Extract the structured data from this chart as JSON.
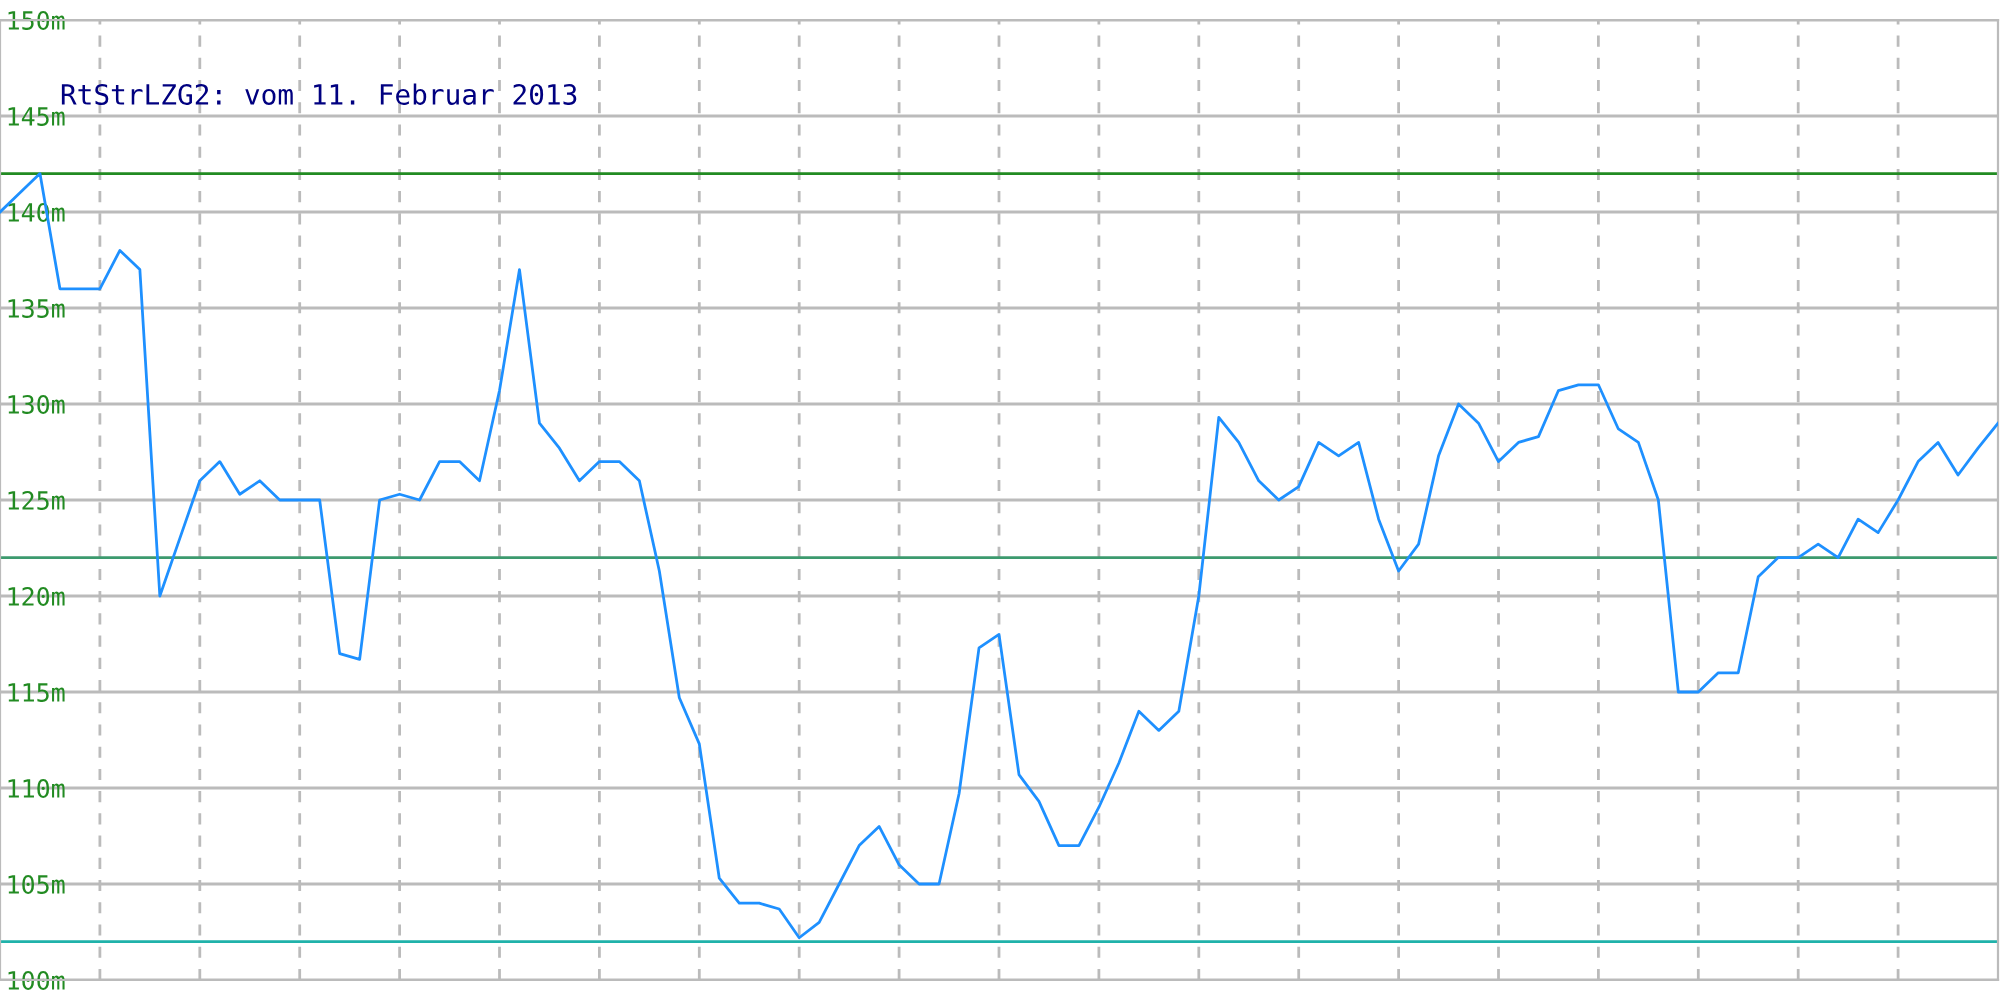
{
  "chart_data": {
    "type": "line",
    "title": "RtStrLZG2: vom 11. Februar 2013",
    "categories": [
      null,
      null,
      null,
      null,
      null,
      null,
      null,
      null,
      null,
      null,
      null,
      null,
      null,
      null,
      null,
      null,
      null,
      null,
      null,
      null,
      null,
      null,
      null,
      null,
      null,
      null,
      null,
      null,
      null,
      null,
      null,
      null,
      null,
      null,
      null,
      null,
      null,
      null,
      null,
      null,
      null,
      null,
      null,
      null,
      null,
      null,
      null,
      null,
      null,
      null,
      null,
      null,
      null,
      null,
      null,
      null,
      null,
      null,
      null,
      null,
      null,
      null,
      null,
      null,
      null,
      null,
      null,
      null,
      null,
      null,
      null,
      null,
      null,
      null,
      null,
      null,
      null,
      null,
      null,
      null,
      null,
      null,
      null,
      null,
      null,
      null,
      null,
      null,
      null,
      null,
      null,
      null,
      null,
      null,
      null,
      null,
      null,
      null,
      null,
      null,
      null
    ],
    "series": [
      {
        "color": "#1e90ff",
        "values": [
          140,
          141,
          142,
          136,
          136,
          136,
          138,
          137,
          120,
          123,
          126,
          127,
          125.3,
          126,
          125,
          125,
          125,
          117,
          116.7,
          125,
          125.3,
          125,
          127,
          127,
          126,
          130.7,
          137,
          129,
          127.7,
          126,
          127,
          127,
          126,
          121.3,
          114.7,
          112.3,
          105.3,
          104,
          104,
          103.7,
          102.2,
          103,
          105,
          107,
          108,
          106,
          105,
          105,
          109.7,
          117.3,
          118,
          110.7,
          109.3,
          107,
          107,
          109,
          111.3,
          114,
          113,
          114,
          120,
          129.3,
          128,
          126,
          125,
          125.7,
          128,
          127.3,
          128,
          124,
          121.3,
          122.7,
          127.3,
          130,
          129,
          127,
          128,
          128.3,
          130.7,
          131,
          131,
          128.7,
          128,
          125,
          115,
          115,
          116,
          116,
          121,
          122,
          122,
          122.7,
          122,
          124,
          123.3,
          125,
          127,
          128,
          126.3,
          127.7,
          129
        ]
      }
    ],
    "ylim": [
      100,
      150
    ],
    "yticks": [
      {
        "value": 100,
        "label": "100m"
      },
      {
        "value": 105,
        "label": "105m"
      },
      {
        "value": 110,
        "label": "110m"
      },
      {
        "value": 115,
        "label": "115m"
      },
      {
        "value": 120,
        "label": "120m"
      },
      {
        "value": 125,
        "label": "125m"
      },
      {
        "value": 130,
        "label": "130m"
      },
      {
        "value": 135,
        "label": "135m"
      },
      {
        "value": 140,
        "label": "140m"
      },
      {
        "value": 145,
        "label": "145m"
      },
      {
        "value": 150,
        "label": "150m"
      }
    ],
    "ref_lines": [
      {
        "axis": "y",
        "value": 142,
        "color": "#228b22"
      },
      {
        "axis": "y",
        "value": 122,
        "color": "#3c9a6e"
      },
      {
        "axis": "y",
        "value": 102,
        "color": "#20b2aa"
      }
    ],
    "grid": true,
    "line_style": "solid",
    "marker": "none"
  }
}
